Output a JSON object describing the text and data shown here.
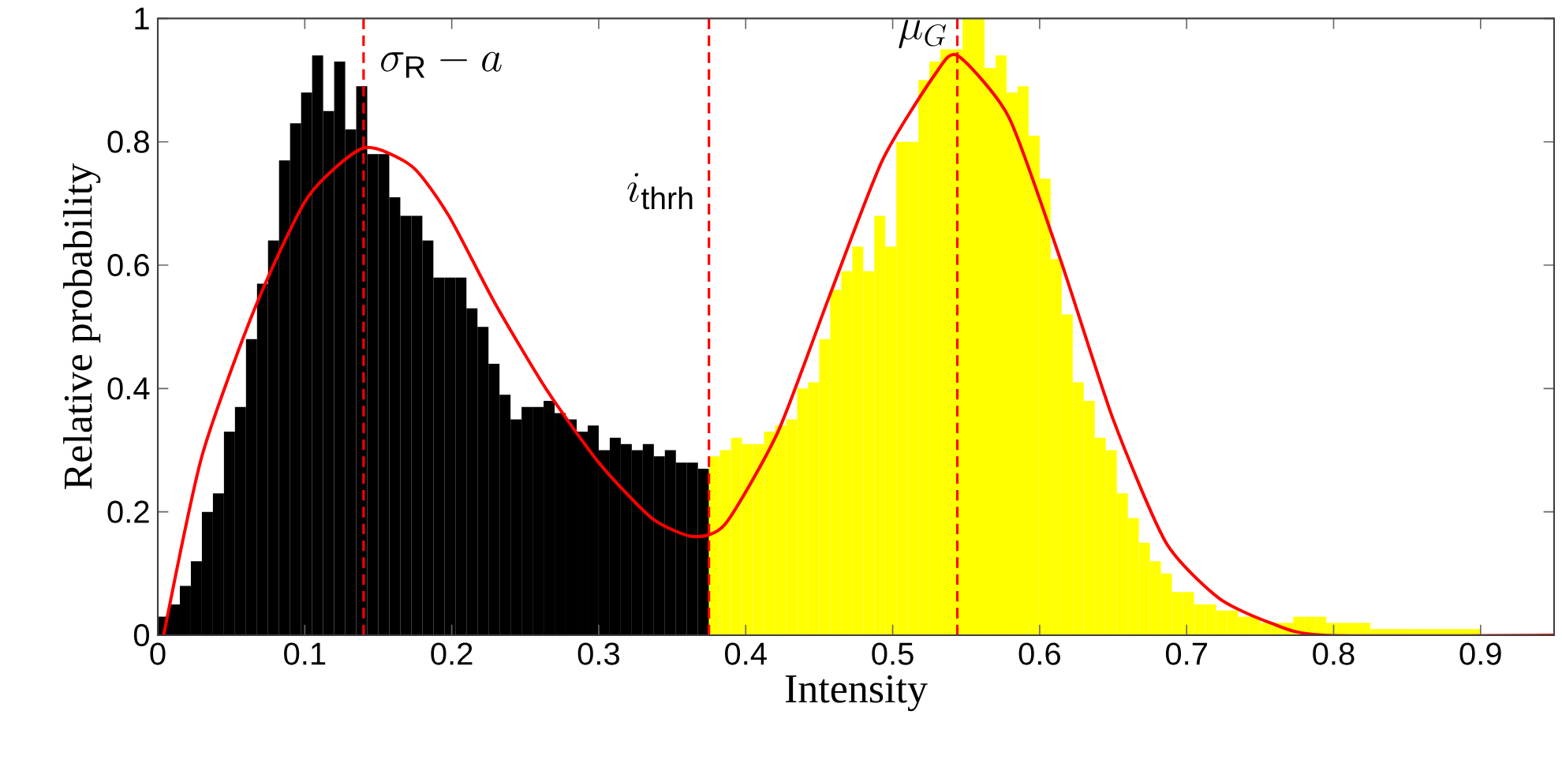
{
  "chart_data": {
    "type": "histogram",
    "xlabel": "Intensity",
    "ylabel": "Relative probability",
    "xlim": [
      0,
      0.95
    ],
    "ylim": [
      0,
      1
    ],
    "xticks": [
      0,
      0.1,
      0.2,
      0.3,
      0.4,
      0.5,
      0.6,
      0.7,
      0.8,
      0.9
    ],
    "yticks": [
      0,
      0.2,
      0.4,
      0.6,
      0.8,
      1
    ],
    "series": [
      {
        "color": "#000000",
        "bins": [
          0,
          0.0075,
          0.015,
          0.0225,
          0.03,
          0.0375,
          0.045,
          0.0525,
          0.06,
          0.0675,
          0.075,
          0.0825,
          0.09,
          0.0975,
          0.105,
          0.1125,
          0.12,
          0.1275,
          0.135,
          0.1425,
          0.15,
          0.1575,
          0.165,
          0.1725,
          0.18,
          0.1875,
          0.195,
          0.2025,
          0.21,
          0.2175,
          0.225,
          0.2325,
          0.24,
          0.2475,
          0.255,
          0.2625,
          0.27,
          0.2775,
          0.285,
          0.2925,
          0.3,
          0.3075,
          0.315,
          0.3225,
          0.33,
          0.3375,
          0.345,
          0.3525,
          0.36,
          0.3675,
          0.375
        ],
        "values": [
          0.03,
          0.05,
          0.08,
          0.12,
          0.2,
          0.23,
          0.33,
          0.37,
          0.48,
          0.57,
          0.64,
          0.77,
          0.83,
          0.88,
          0.94,
          0.85,
          0.93,
          0.82,
          0.89,
          0.78,
          0.78,
          0.71,
          0.68,
          0.68,
          0.64,
          0.58,
          0.58,
          0.58,
          0.53,
          0.5,
          0.44,
          0.39,
          0.35,
          0.37,
          0.37,
          0.38,
          0.36,
          0.35,
          0.33,
          0.34,
          0.3,
          0.32,
          0.31,
          0.3,
          0.31,
          0.29,
          0.3,
          0.28,
          0.28,
          0.27
        ]
      },
      {
        "color": "#ffff00",
        "bins": [
          0.375,
          0.3825,
          0.39,
          0.3975,
          0.405,
          0.4125,
          0.42,
          0.4275,
          0.435,
          0.4425,
          0.45,
          0.4575,
          0.465,
          0.4725,
          0.48,
          0.4875,
          0.495,
          0.5025,
          0.51,
          0.5175,
          0.525,
          0.5325,
          0.54,
          0.5475,
          0.555,
          0.5625,
          0.57,
          0.5775,
          0.585,
          0.5925,
          0.6,
          0.6075,
          0.615,
          0.6225,
          0.63,
          0.6375,
          0.645,
          0.6525,
          0.66,
          0.6675,
          0.675,
          0.6825,
          0.69,
          0.6975,
          0.705,
          0.7125,
          0.72,
          0.7275,
          0.735,
          0.7425,
          0.75,
          0.7575,
          0.765,
          0.7725,
          0.78,
          0.7875,
          0.795,
          0.8025,
          0.81,
          0.8175,
          0.825,
          0.8325,
          0.84,
          0.8475,
          0.855,
          0.8625,
          0.87,
          0.8775,
          0.885,
          0.8925,
          0.9
        ],
        "values": [
          0.29,
          0.3,
          0.32,
          0.31,
          0.31,
          0.33,
          0.34,
          0.35,
          0.4,
          0.41,
          0.48,
          0.56,
          0.59,
          0.63,
          0.59,
          0.68,
          0.63,
          0.8,
          0.8,
          0.9,
          0.93,
          0.95,
          0.95,
          1.0,
          1.0,
          0.92,
          0.94,
          0.88,
          0.89,
          0.81,
          0.74,
          0.61,
          0.52,
          0.41,
          0.38,
          0.32,
          0.3,
          0.23,
          0.19,
          0.15,
          0.12,
          0.1,
          0.07,
          0.07,
          0.05,
          0.05,
          0.04,
          0.04,
          0.03,
          0.03,
          0.02,
          0.02,
          0.02,
          0.03,
          0.03,
          0.03,
          0.02,
          0.02,
          0.02,
          0.02,
          0.01,
          0.01,
          0.01,
          0.01,
          0.01,
          0.01,
          0.01,
          0.01,
          0.01,
          0.01
        ]
      },
      {
        "type": "line",
        "color": "#ff0000",
        "x": [
          0.004,
          0.03,
          0.066,
          0.102,
          0.14,
          0.173,
          0.198,
          0.229,
          0.264,
          0.3,
          0.336,
          0.364,
          0.386,
          0.422,
          0.457,
          0.493,
          0.529,
          0.544,
          0.579,
          0.614,
          0.65,
          0.686,
          0.722,
          0.757,
          0.793,
          0.95
        ],
        "values": [
          0,
          0.29,
          0.53,
          0.71,
          0.79,
          0.76,
          0.68,
          0.54,
          0.4,
          0.28,
          0.19,
          0.16,
          0.18,
          0.33,
          0.55,
          0.77,
          0.91,
          0.94,
          0.84,
          0.61,
          0.35,
          0.15,
          0.06,
          0.02,
          0,
          0
        ]
      }
    ],
    "ref_lines": [
      {
        "axis": "x",
        "value": 0.14,
        "label": "\\sigma_{\\mathrm{R}}-a",
        "color": "#ff0000",
        "line_style": "dashed"
      },
      {
        "axis": "x",
        "value": 0.375,
        "label": "i_{\\mathrm{thrh}}",
        "color": "#ff0000",
        "line_style": "dashed"
      },
      {
        "axis": "x",
        "value": 0.544,
        "label": "\\mu_{G}",
        "color": "#ff0000",
        "line_style": "dashed"
      }
    ],
    "grid": false,
    "marker": "none",
    "line_style": "solid"
  }
}
